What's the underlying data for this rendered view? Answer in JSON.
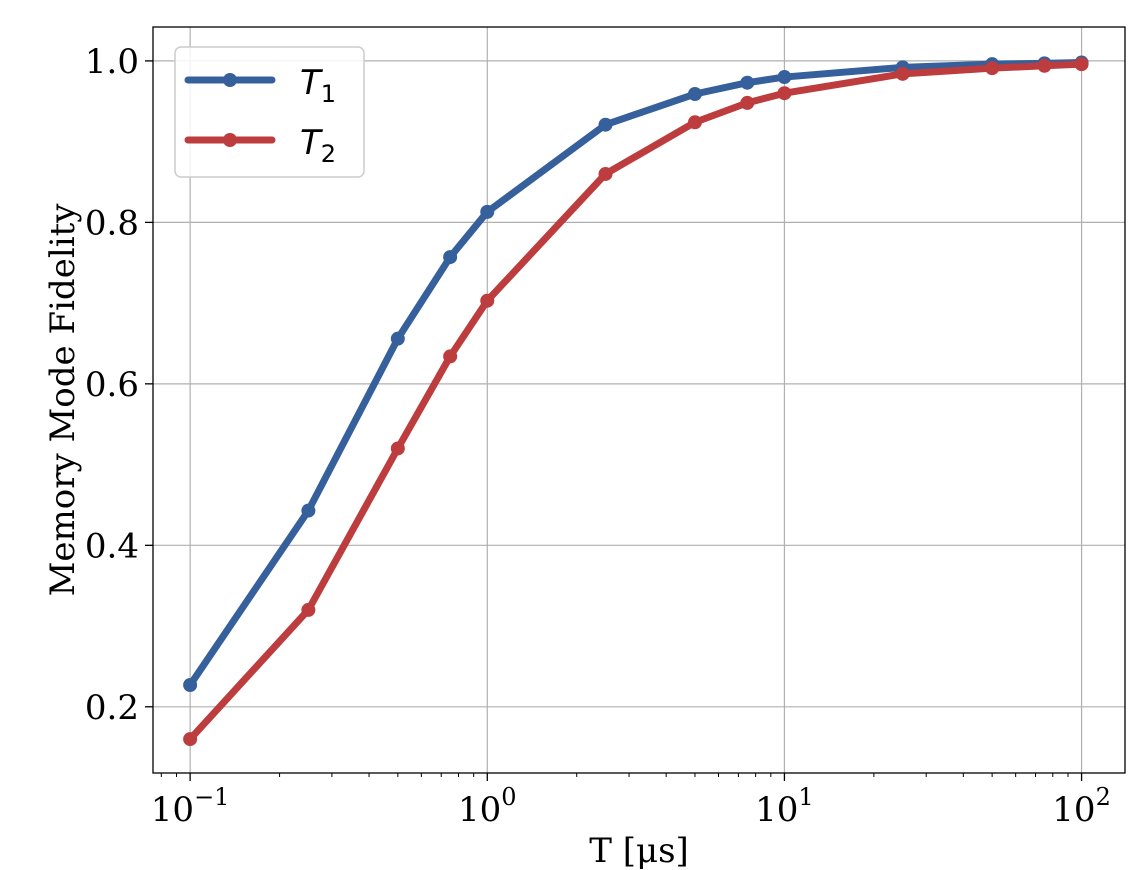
{
  "chart_data": {
    "type": "line",
    "xscale": "log",
    "xlim": [
      0.075,
      140
    ],
    "ylim": [
      0.118,
      1.042
    ],
    "grid": true,
    "xlabel": "T [μs]",
    "ylabel": "Memory Mode Fidelity",
    "x_ticks": [
      {
        "value": 0.1,
        "base": "10",
        "exp": "−1"
      },
      {
        "value": 1,
        "base": "10",
        "exp": "0"
      },
      {
        "value": 10,
        "base": "10",
        "exp": "1"
      },
      {
        "value": 100,
        "base": "10",
        "exp": "2"
      }
    ],
    "y_ticks": [
      {
        "value": 0.2,
        "label": "0.2"
      },
      {
        "value": 0.4,
        "label": "0.4"
      },
      {
        "value": 0.6,
        "label": "0.6"
      },
      {
        "value": 0.8,
        "label": "0.8"
      },
      {
        "value": 1.0,
        "label": "1.0"
      }
    ],
    "legend_position": "upper-left",
    "series": [
      {
        "name": "T",
        "subscript": "1",
        "color": "#35609c",
        "x": [
          0.1,
          0.25,
          0.5,
          0.75,
          1,
          2.5,
          5,
          7.5,
          10,
          25,
          50,
          75,
          100
        ],
        "y": [
          0.227,
          0.443,
          0.656,
          0.757,
          0.813,
          0.921,
          0.959,
          0.973,
          0.98,
          0.992,
          0.996,
          0.997,
          0.998
        ]
      },
      {
        "name": "T",
        "subscript": "2",
        "color": "#bd3c3e",
        "x": [
          0.1,
          0.25,
          0.5,
          0.75,
          1,
          2.5,
          5,
          7.5,
          10,
          25,
          50,
          75,
          100
        ],
        "y": [
          0.16,
          0.32,
          0.52,
          0.634,
          0.703,
          0.86,
          0.924,
          0.948,
          0.96,
          0.984,
          0.991,
          0.994,
          0.996
        ]
      }
    ]
  }
}
